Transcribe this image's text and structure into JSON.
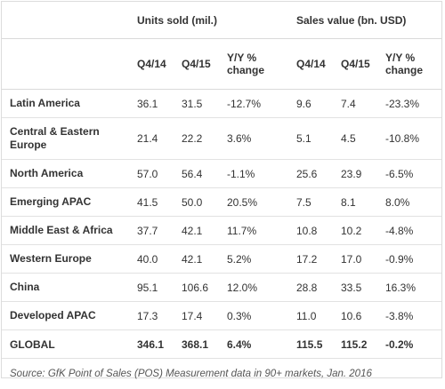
{
  "header": {
    "units_group": "Units sold (mil.)",
    "sales_group": "Sales value (bn. USD)",
    "columns": [
      "Q4/14",
      "Q4/15",
      "Y/Y % change",
      "Q4/14",
      "Q4/15",
      "Y/Y % change"
    ]
  },
  "rows": [
    {
      "region": "Latin America",
      "values": [
        "36.1",
        "31.5",
        "-12.7%",
        "9.6",
        "7.4",
        "-23.3%"
      ]
    },
    {
      "region": "Central & Eastern Europe",
      "values": [
        "21.4",
        "22.2",
        "3.6%",
        "5.1",
        "4.5",
        "-10.8%"
      ]
    },
    {
      "region": "North America",
      "values": [
        "57.0",
        "56.4",
        "-1.1%",
        "25.6",
        "23.9",
        "-6.5%"
      ]
    },
    {
      "region": "Emerging APAC",
      "values": [
        "41.5",
        "50.0",
        "20.5%",
        "7.5",
        "8.1",
        "8.0%"
      ]
    },
    {
      "region": "Middle East & Africa",
      "values": [
        "37.7",
        "42.1",
        "11.7%",
        "10.8",
        "10.2",
        "-4.8%"
      ]
    },
    {
      "region": "Western Europe",
      "values": [
        "40.0",
        "42.1",
        "5.2%",
        "17.2",
        "17.0",
        "-0.9%"
      ]
    },
    {
      "region": "China",
      "values": [
        "95.1",
        "106.6",
        "12.0%",
        "28.8",
        "33.5",
        "16.3%"
      ]
    },
    {
      "region": "Developed APAC",
      "values": [
        "17.3",
        "17.4",
        "0.3%",
        "11.0",
        "10.6",
        "-3.8%"
      ]
    }
  ],
  "total": {
    "region": "GLOBAL",
    "values": [
      "346.1",
      "368.1",
      "6.4%",
      "115.5",
      "115.2",
      "-0.2%"
    ]
  },
  "source": "Source: GfK Point of Sales (POS) Measurement data in 90+ markets, Jan. 2016"
}
